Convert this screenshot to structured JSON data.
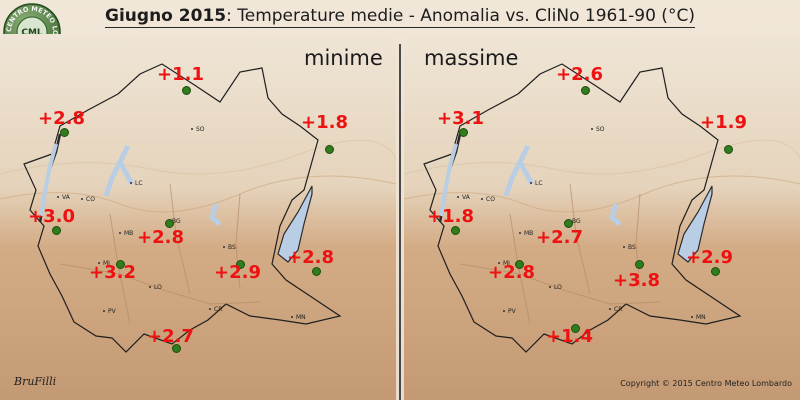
{
  "header": {
    "title_bold": "Giugno 2015",
    "title_rest": ": Temperature medie - Anomalia vs. CliNo 1961-90 (°C)"
  },
  "logo": {
    "ring_text": "CENTRO METEO LOMBARDO",
    "center_text": "CML"
  },
  "panels": {
    "minime": {
      "label": "minime",
      "values": [
        "+1.1",
        "+2.8",
        "+1.8",
        "+3.0",
        "+2.8",
        "+2.8",
        "+3.2",
        "+2.9",
        "+2.7"
      ]
    },
    "massime": {
      "label": "massime",
      "values": [
        "+2.6",
        "+3.1",
        "+1.9",
        "+1.8",
        "+2.7",
        "+2.9",
        "+2.8",
        "+3.8",
        "+1.4"
      ]
    }
  },
  "cities": [
    "SO",
    "LC",
    "CO",
    "VA",
    "BG",
    "MB",
    "BS",
    "MI",
    "LO",
    "PV",
    "CR",
    "MN"
  ],
  "footer": {
    "copyright": "Copyright © 2015 Centro Meteo Lombardo",
    "signature": "BruFilli"
  },
  "colors": {
    "value_text": "#ee1111",
    "station_dot": "#2f7d1b",
    "lake": "#b9cde4",
    "mountain": "#e8dac6",
    "plain": "#cda885"
  }
}
